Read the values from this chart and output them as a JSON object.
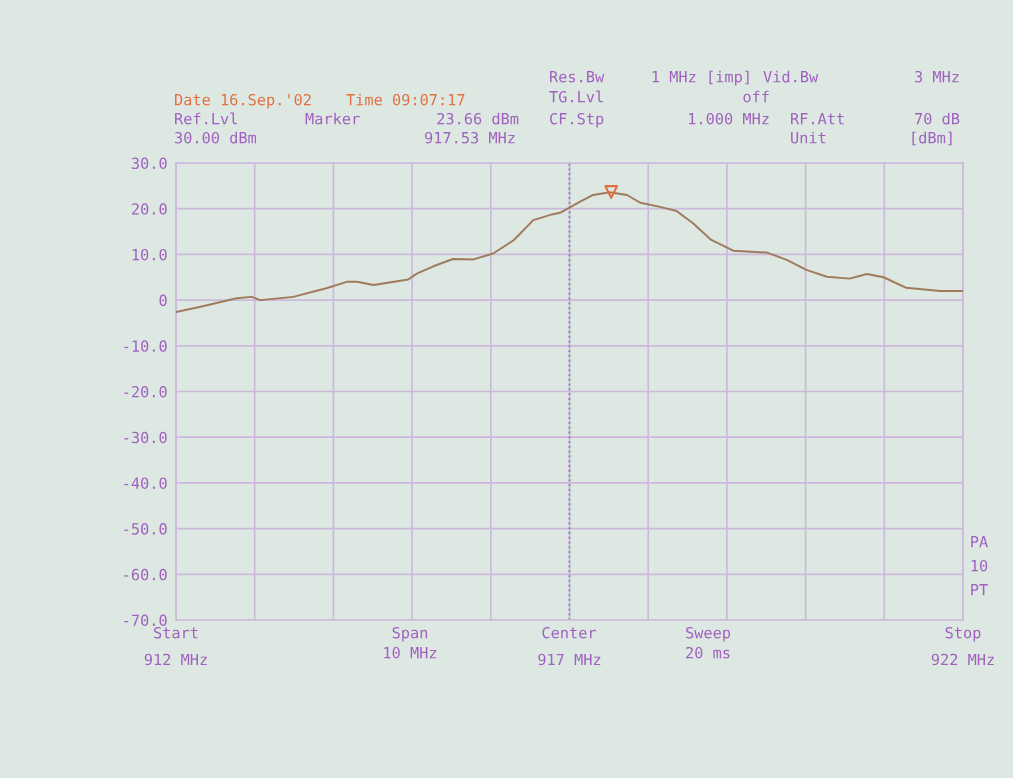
{
  "chart_data": {
    "type": "line",
    "xlim": [
      912,
      922
    ],
    "ylim": [
      -70,
      30
    ],
    "xticks": [
      {
        "value": 912,
        "label": "912 MHz"
      },
      {
        "value": 913,
        "label": null
      },
      {
        "value": 914,
        "label": null
      },
      {
        "value": 915,
        "label": null
      },
      {
        "value": 916,
        "label": null
      },
      {
        "value": 917,
        "label": "917 MHz"
      },
      {
        "value": 918,
        "label": null
      },
      {
        "value": 919,
        "label": null
      },
      {
        "value": 920,
        "label": null
      },
      {
        "value": 921,
        "label": null
      },
      {
        "value": 922,
        "label": "922 MHz"
      }
    ],
    "yticks": [
      {
        "value": 30,
        "label": "30.0"
      },
      {
        "value": 20,
        "label": "20.0"
      },
      {
        "value": 10,
        "label": "10.0"
      },
      0,
      {
        "value": -10,
        "label": "-10.0"
      },
      {
        "value": -20,
        "label": "-20.0"
      },
      {
        "value": -30,
        "label": "-30.0"
      },
      {
        "value": -40,
        "label": "-40.0"
      },
      {
        "value": -50,
        "label": "-50.0"
      },
      {
        "value": -60,
        "label": "-60.0"
      },
      {
        "value": -70,
        "label": "-70.0"
      }
    ],
    "grid": true,
    "line_style": "solid",
    "series": [
      {
        "color": "#a07a5c",
        "x": [
          912.0,
          912.3,
          912.77,
          912.96,
          913.07,
          913.49,
          913.91,
          914.17,
          914.3,
          914.51,
          914.95,
          915.06,
          915.27,
          915.52,
          915.78,
          916.03,
          916.29,
          916.54,
          916.79,
          916.88,
          917.13,
          917.3,
          917.51,
          917.73,
          917.9,
          918.15,
          918.36,
          918.57,
          918.79,
          919.08,
          919.51,
          919.76,
          920.01,
          920.27,
          920.56,
          920.78,
          920.99,
          921.28,
          921.71,
          922.0
        ],
        "values": [
          -2.6,
          -1.5,
          0.4,
          0.7,
          0,
          0.7,
          2.6,
          4.0,
          4.0,
          3.3,
          4.5,
          5.8,
          7.4,
          9.0,
          8.9,
          10.2,
          13.1,
          17.5,
          18.8,
          19.1,
          21.5,
          23.0,
          23.6,
          23.0,
          21.3,
          20.4,
          19.5,
          16.8,
          13.3,
          10.8,
          10.4,
          8.8,
          6.6,
          5.1,
          4.7,
          5.7,
          5.0,
          2.7,
          2.0,
          2.0
        ]
      },
      {
        "type": "scatter",
        "marker": "triangle",
        "color": "#e07040",
        "x": [
          917.53
        ],
        "values": [
          23.66
        ]
      }
    ],
    "ref_lines": [
      {
        "axis": "x",
        "value": 917,
        "line_style": "dotted",
        "color": "#9a70b8"
      }
    ],
    "annotations": [
      "Date 16.Sep.'02",
      "Time 09:07:17",
      "Res.Bw",
      "1 MHz [imp]",
      "Vid.Bw",
      "3 MHz",
      "Ref.Lvl",
      "30.00 dBm",
      "Marker",
      "23.66 dBm",
      "917.53 MHz",
      "TG.Lvl",
      "off",
      "CF.Stp",
      "1.000 MHz",
      "RF.Att",
      "70 dB",
      "Unit",
      "[dBm]",
      "Start",
      "Span",
      "10 MHz",
      "Center",
      "Sweep",
      "20 ms",
      "Stop",
      "PA",
      "10",
      "PT"
    ]
  }
}
